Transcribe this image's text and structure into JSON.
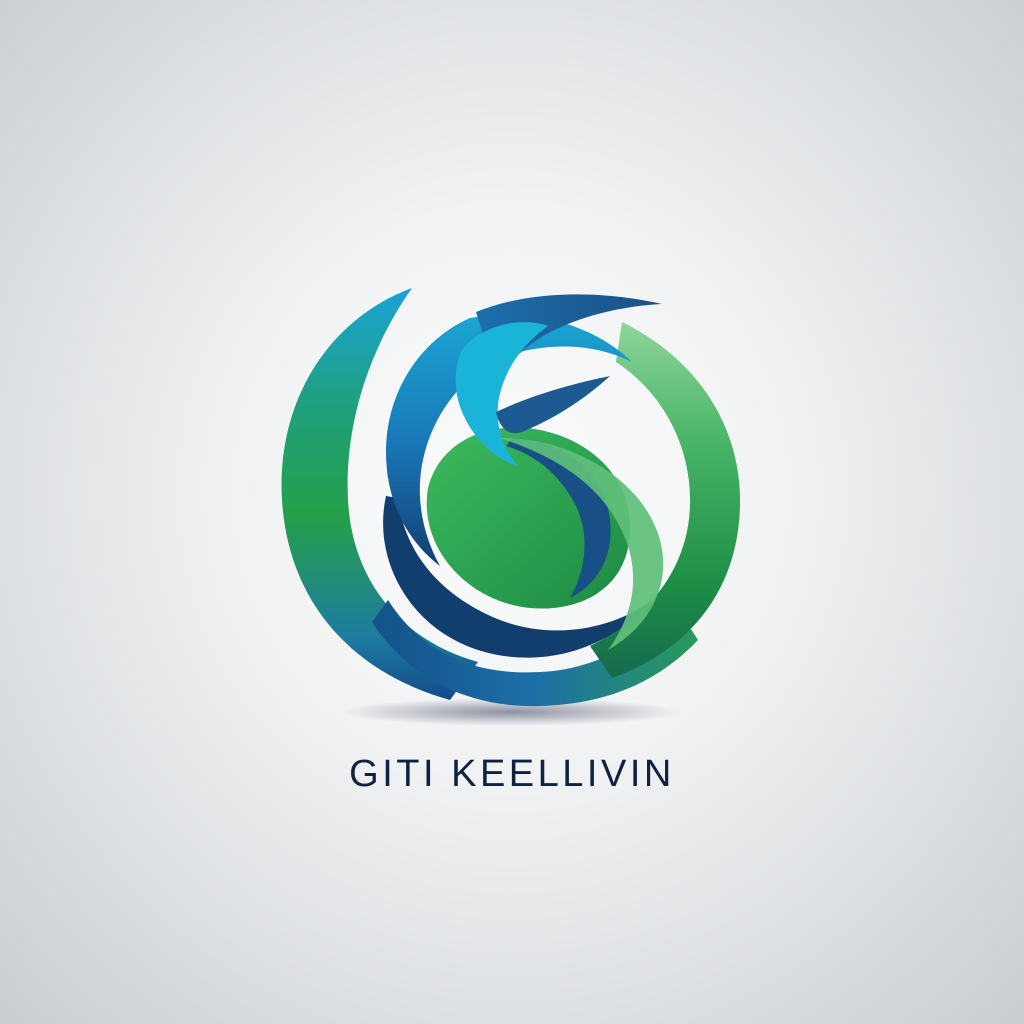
{
  "brand": {
    "name": "GITI KEELLIVIN"
  },
  "colors": {
    "navy": "#0f2240",
    "deep_blue": "#144a7e",
    "blue": "#1e6fae",
    "cyan": "#19a6d3",
    "green": "#22a14a",
    "light_green": "#63c07a",
    "background": "#eef0f1"
  },
  "icons": {
    "logo_mark": "swirl-circle-emblem"
  }
}
